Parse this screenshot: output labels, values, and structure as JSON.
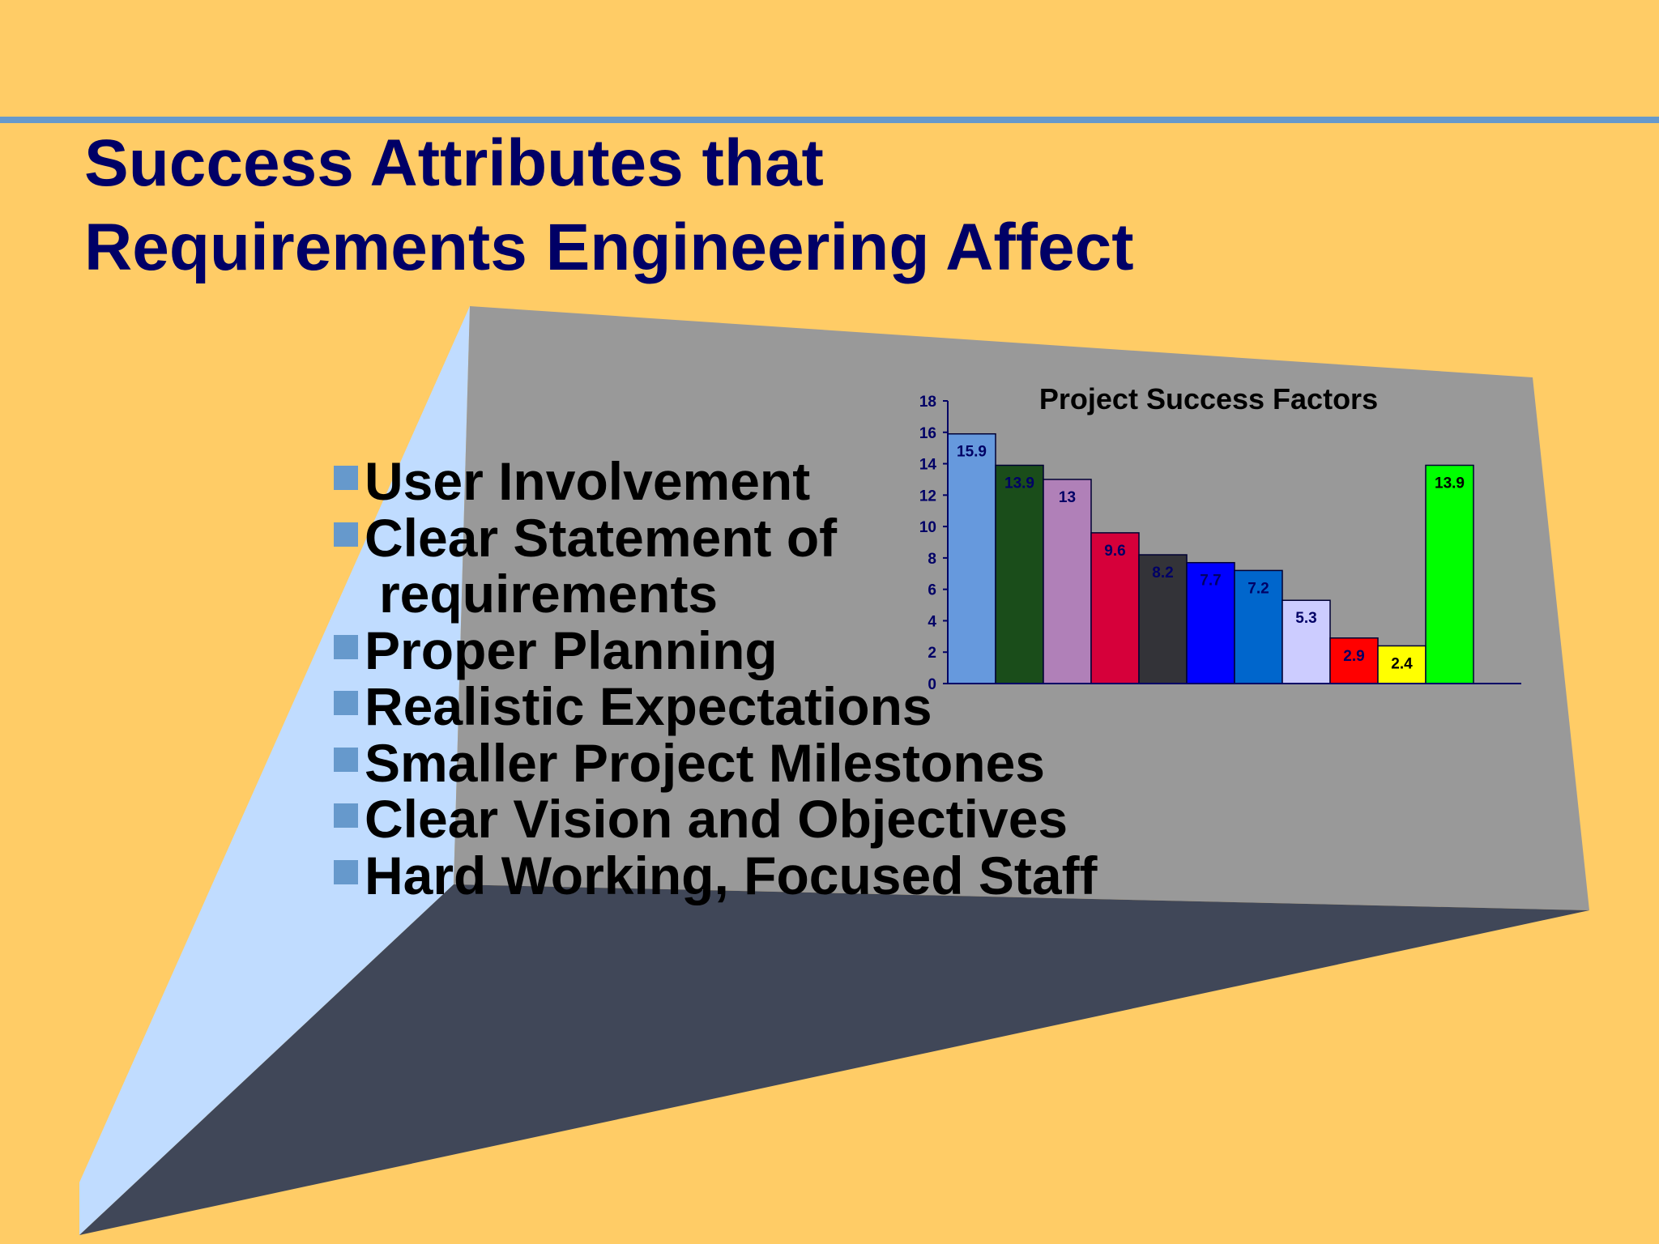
{
  "slide": {
    "title_line1": "Success Attributes that",
    "title_line2": "Requirements Engineering Affect",
    "colors": {
      "background": "#FFCC66",
      "rule": "#6699CC",
      "title": "#000066",
      "bullet_square": "#6699CC",
      "panel_left": "#C0DCFF",
      "panel_back": "#999999",
      "panel_floor": "#404758"
    }
  },
  "bullets": [
    {
      "id": "user-involvement",
      "text": "User Involvement"
    },
    {
      "id": "clear-statement",
      "text": "Clear Statement of"
    },
    {
      "id": "clear-statement-cont",
      "text": "requirements",
      "continuation": true
    },
    {
      "id": "proper-planning",
      "text": "Proper Planning"
    },
    {
      "id": "realistic-expectations",
      "text": "Realistic Expectations"
    },
    {
      "id": "smaller-milestones",
      "text": "Smaller Project Milestones"
    },
    {
      "id": "clear-vision",
      "text": "Clear Vision and Objectives"
    },
    {
      "id": "hard-working-staff",
      "text": "Hard Working, Focused Staff"
    }
  ],
  "chart_data": {
    "type": "bar",
    "title": "Project Success Factors",
    "xlabel": "",
    "ylabel": "",
    "ylim": [
      0,
      18
    ],
    "yticks": [
      0,
      2,
      4,
      6,
      8,
      10,
      12,
      14,
      16,
      18
    ],
    "grid": false,
    "legend": "none",
    "values": [
      15.9,
      13.9,
      13,
      9.6,
      8.2,
      7.7,
      7.2,
      5.3,
      2.9,
      2.4,
      13.9
    ],
    "labels": [
      "15.9",
      "13.9",
      "13",
      "9.6",
      "8.2",
      "7.7",
      "7.2",
      "5.3",
      "2.9",
      "2.4",
      "13.9"
    ],
    "colors": [
      "#6699DD",
      "#1A4D1A",
      "#B080B8",
      "#D6003A",
      "#333338",
      "#0000FF",
      "#0066CC",
      "#CCCCFF",
      "#FF0000",
      "#FFFF00",
      "#00FF00"
    ],
    "label_colors": [
      "#000066",
      "#000066",
      "#000066",
      "#000066",
      "#000066",
      "#000066",
      "#000066",
      "#000066",
      "#000066",
      "#000000",
      "#000000"
    ],
    "axis_color": "#000066"
  }
}
